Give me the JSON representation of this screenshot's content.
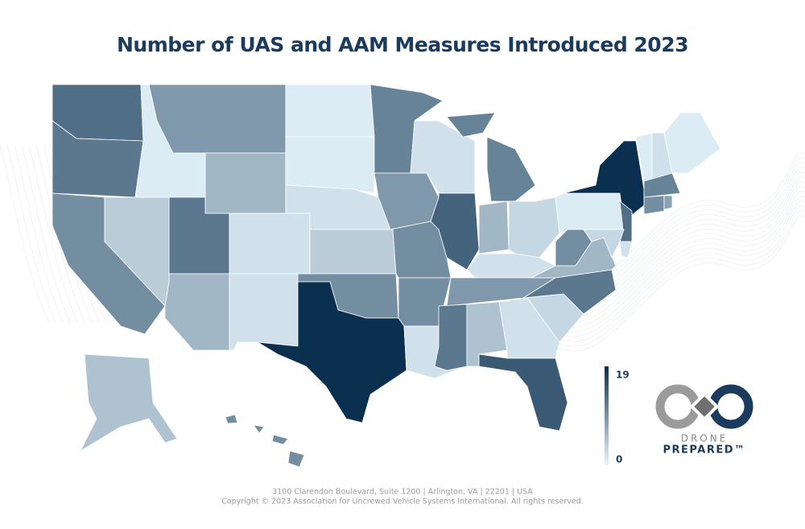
{
  "map": {
    "title": "Number of UAS and AAM Measures Introduced 2023",
    "legend": {
      "max": 19,
      "min": 0,
      "color_high": "#0a2f4f",
      "color_low": "#e8f6fd"
    },
    "values": {
      "WA": 13,
      "OR": 12,
      "CA": 10,
      "NV": 4,
      "ID": 1,
      "MT": 9,
      "WY": 6,
      "UT": 12,
      "AZ": 6,
      "CO": 2,
      "NM": 2,
      "ND": 1,
      "SD": 1,
      "NE": 2,
      "KS": 4,
      "OK": 10,
      "TX": 19,
      "MN": 11,
      "IA": 9,
      "MO": 10,
      "AR": 10,
      "LA": 2,
      "WI": 2,
      "IL": 14,
      "MI": 11,
      "IN": 6,
      "OH": 3,
      "KY": 2,
      "TN": 9,
      "MS": 12,
      "AL": 5,
      "GA": 2,
      "FL": 15,
      "SC": 3,
      "NC": 12,
      "VA": 6,
      "WV": 10,
      "PA": 1,
      "NY": 19,
      "NJ": 13,
      "MD": 3,
      "DE": 2,
      "VT": 1,
      "NH": 2,
      "ME": 1,
      "MA": 11,
      "CT": 10,
      "RI": 8,
      "AK": 5,
      "HI": 10
    },
    "logo": {
      "line1": "DRONE",
      "line2": "PREPARED™"
    },
    "footer": {
      "address": "3100 Clarendon Boulevard, Suite 1200  |  Arlington, VA  |  22201  |  USA",
      "copyright": "Copyright © 2023 Association for Uncrewed Vehicle Systems International. All rights reserved."
    }
  }
}
